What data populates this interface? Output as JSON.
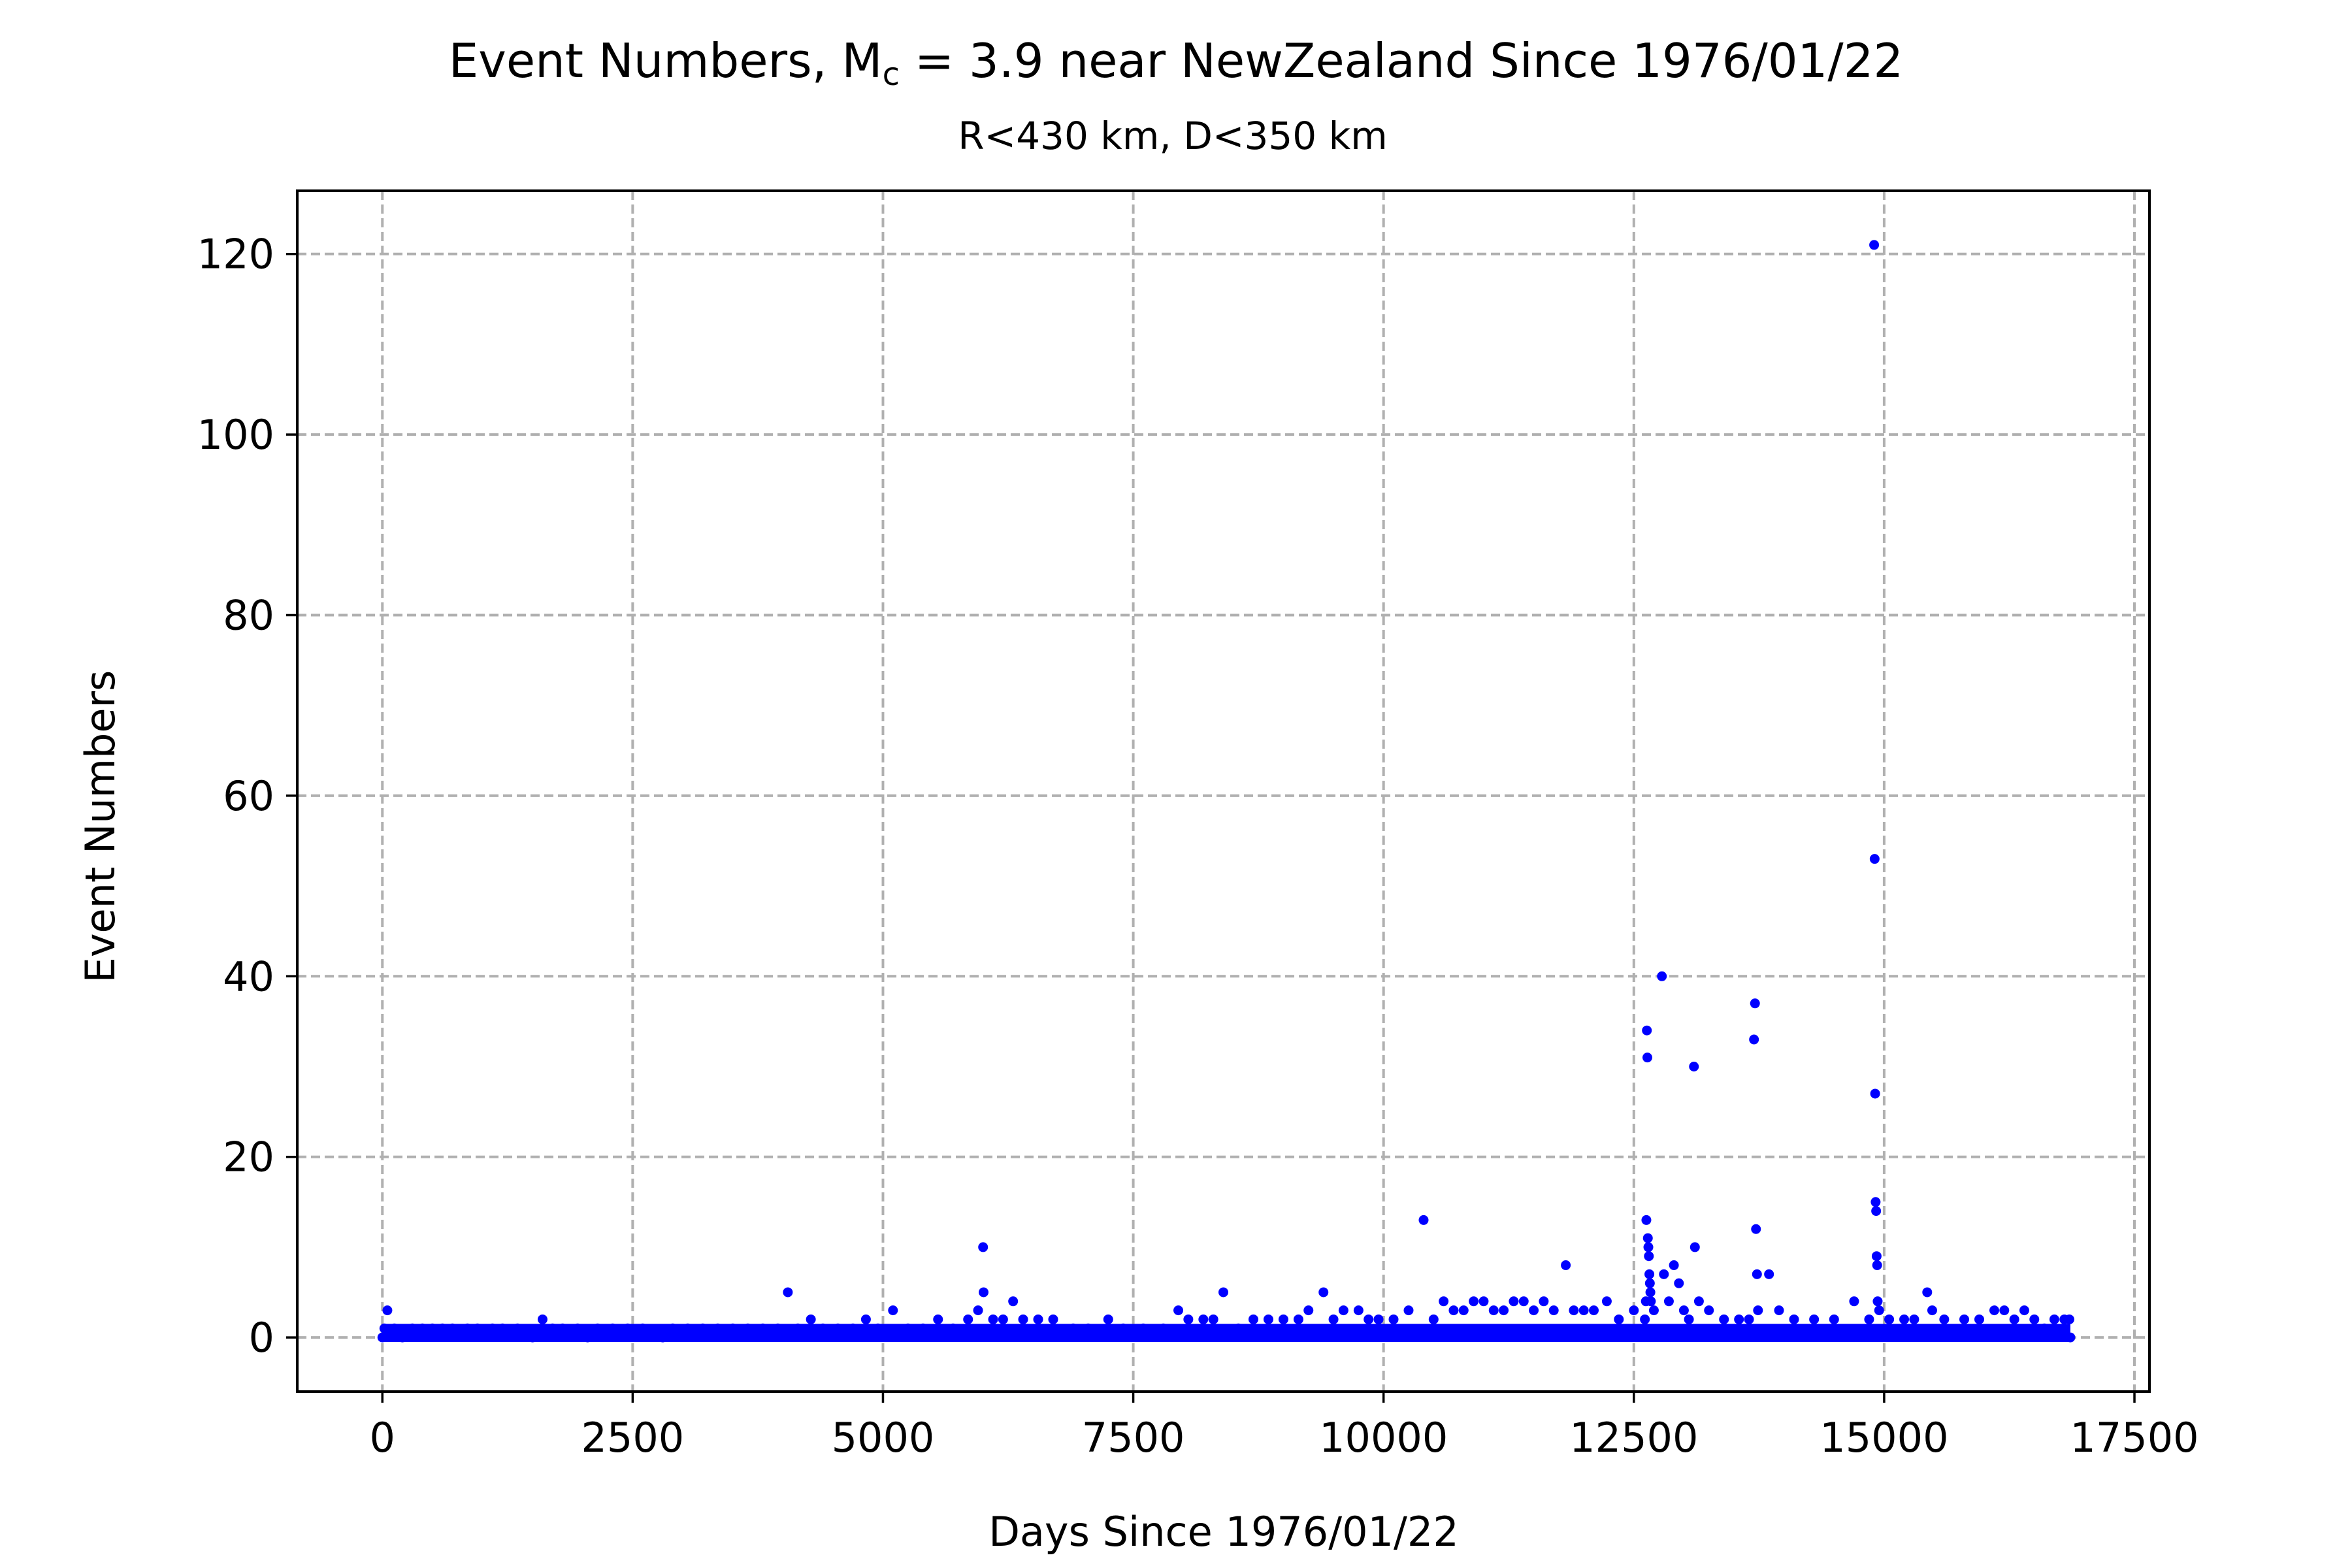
{
  "chart_data": {
    "type": "scatter",
    "title_prefix": "Event Numbers, M",
    "title_sub": "c",
    "title_suffix": " = 3.9 near NewZealand Since 1976/01/22",
    "subtitle": "R<430 km, D<350 km",
    "xlabel": "Days Since 1976/01/22",
    "ylabel": "Event Numbers",
    "xlim": [
      -850,
      17650
    ],
    "ylim": [
      -6,
      127
    ],
    "xticks": [
      0,
      2500,
      5000,
      7500,
      10000,
      12500,
      15000,
      17500
    ],
    "xtick_labels": [
      "0",
      "2500",
      "5000",
      "7500",
      "10000",
      "12500",
      "15000",
      "17500"
    ],
    "yticks": [
      0,
      20,
      40,
      60,
      80,
      100,
      120
    ],
    "ytick_labels": [
      "0",
      "20",
      "40",
      "60",
      "80",
      "100",
      "120"
    ],
    "grid": true,
    "series": [
      {
        "color": "#0000ff",
        "marker": "dot",
        "points": [
          [
            0,
            0
          ],
          [
            20,
            1
          ],
          [
            50,
            3
          ],
          [
            120,
            1
          ],
          [
            200,
            0
          ],
          [
            300,
            1
          ],
          [
            400,
            1
          ],
          [
            500,
            1
          ],
          [
            600,
            1
          ],
          [
            700,
            1
          ],
          [
            850,
            1
          ],
          [
            950,
            1
          ],
          [
            1100,
            1
          ],
          [
            1200,
            1
          ],
          [
            1350,
            1
          ],
          [
            1500,
            0
          ],
          [
            1600,
            2
          ],
          [
            1700,
            1
          ],
          [
            1800,
            1
          ],
          [
            1950,
            1
          ],
          [
            2050,
            0
          ],
          [
            2150,
            1
          ],
          [
            2300,
            1
          ],
          [
            2450,
            1
          ],
          [
            2600,
            1
          ],
          [
            2800,
            0
          ],
          [
            2900,
            1
          ],
          [
            3050,
            1
          ],
          [
            3200,
            1
          ],
          [
            3350,
            1
          ],
          [
            3500,
            1
          ],
          [
            3650,
            1
          ],
          [
            3800,
            1
          ],
          [
            3950,
            1
          ],
          [
            4050,
            5
          ],
          [
            4150,
            1
          ],
          [
            4280,
            2
          ],
          [
            4400,
            1
          ],
          [
            4550,
            1
          ],
          [
            4700,
            1
          ],
          [
            4830,
            2
          ],
          [
            4950,
            1
          ],
          [
            5100,
            3
          ],
          [
            5250,
            1
          ],
          [
            5400,
            1
          ],
          [
            5550,
            2
          ],
          [
            5700,
            1
          ],
          [
            5850,
            2
          ],
          [
            5950,
            3
          ],
          [
            6000,
            10
          ],
          [
            6005,
            5
          ],
          [
            6100,
            2
          ],
          [
            6200,
            2
          ],
          [
            6300,
            4
          ],
          [
            6400,
            2
          ],
          [
            6550,
            2
          ],
          [
            6700,
            2
          ],
          [
            6900,
            1
          ],
          [
            7050,
            1
          ],
          [
            7250,
            2
          ],
          [
            7400,
            1
          ],
          [
            7600,
            1
          ],
          [
            7800,
            1
          ],
          [
            7950,
            3
          ],
          [
            8050,
            2
          ],
          [
            8200,
            2
          ],
          [
            8300,
            2
          ],
          [
            8400,
            5
          ],
          [
            8550,
            1
          ],
          [
            8700,
            2
          ],
          [
            8850,
            2
          ],
          [
            9000,
            2
          ],
          [
            9150,
            2
          ],
          [
            9250,
            3
          ],
          [
            9400,
            5
          ],
          [
            9500,
            2
          ],
          [
            9600,
            3
          ],
          [
            9750,
            3
          ],
          [
            9850,
            2
          ],
          [
            9950,
            2
          ],
          [
            10100,
            2
          ],
          [
            10250,
            3
          ],
          [
            10400,
            13
          ],
          [
            10500,
            2
          ],
          [
            10600,
            4
          ],
          [
            10700,
            3
          ],
          [
            10800,
            3
          ],
          [
            10900,
            4
          ],
          [
            11000,
            4
          ],
          [
            11100,
            3
          ],
          [
            11200,
            3
          ],
          [
            11300,
            4
          ],
          [
            11400,
            4
          ],
          [
            11500,
            3
          ],
          [
            11600,
            4
          ],
          [
            11700,
            3
          ],
          [
            11820,
            8
          ],
          [
            11900,
            3
          ],
          [
            12000,
            3
          ],
          [
            12100,
            3
          ],
          [
            12230,
            4
          ],
          [
            12350,
            2
          ],
          [
            12500,
            3
          ],
          [
            12610,
            2
          ],
          [
            12620,
            4
          ],
          [
            12625,
            13
          ],
          [
            12630,
            34
          ],
          [
            12635,
            31
          ],
          [
            12640,
            11
          ],
          [
            12645,
            10
          ],
          [
            12650,
            9
          ],
          [
            12655,
            7
          ],
          [
            12660,
            6
          ],
          [
            12665,
            5
          ],
          [
            12670,
            4
          ],
          [
            12700,
            3
          ],
          [
            12780,
            40
          ],
          [
            12800,
            7
          ],
          [
            12850,
            4
          ],
          [
            12900,
            8
          ],
          [
            12950,
            6
          ],
          [
            13000,
            3
          ],
          [
            13050,
            2
          ],
          [
            13100,
            30
          ],
          [
            13110,
            10
          ],
          [
            13150,
            4
          ],
          [
            13250,
            3
          ],
          [
            13400,
            2
          ],
          [
            13550,
            2
          ],
          [
            13650,
            2
          ],
          [
            13700,
            33
          ],
          [
            13710,
            37
          ],
          [
            13720,
            12
          ],
          [
            13730,
            7
          ],
          [
            13740,
            3
          ],
          [
            13850,
            7
          ],
          [
            13950,
            3
          ],
          [
            14100,
            2
          ],
          [
            14300,
            2
          ],
          [
            14500,
            2
          ],
          [
            14700,
            4
          ],
          [
            14850,
            2
          ],
          [
            14900,
            121
          ],
          [
            14905,
            53
          ],
          [
            14910,
            27
          ],
          [
            14915,
            15
          ],
          [
            14920,
            14
          ],
          [
            14925,
            9
          ],
          [
            14930,
            8
          ],
          [
            14935,
            4
          ],
          [
            14950,
            3
          ],
          [
            15050,
            2
          ],
          [
            15200,
            2
          ],
          [
            15300,
            2
          ],
          [
            15430,
            5
          ],
          [
            15480,
            3
          ],
          [
            15600,
            2
          ],
          [
            15800,
            2
          ],
          [
            15950,
            2
          ],
          [
            16100,
            3
          ],
          [
            16200,
            3
          ],
          [
            16300,
            2
          ],
          [
            16400,
            3
          ],
          [
            16500,
            2
          ],
          [
            16600,
            1
          ],
          [
            16700,
            2
          ],
          [
            16800,
            2
          ],
          [
            16850,
            2
          ],
          [
            16860,
            0
          ]
        ]
      }
    ]
  }
}
